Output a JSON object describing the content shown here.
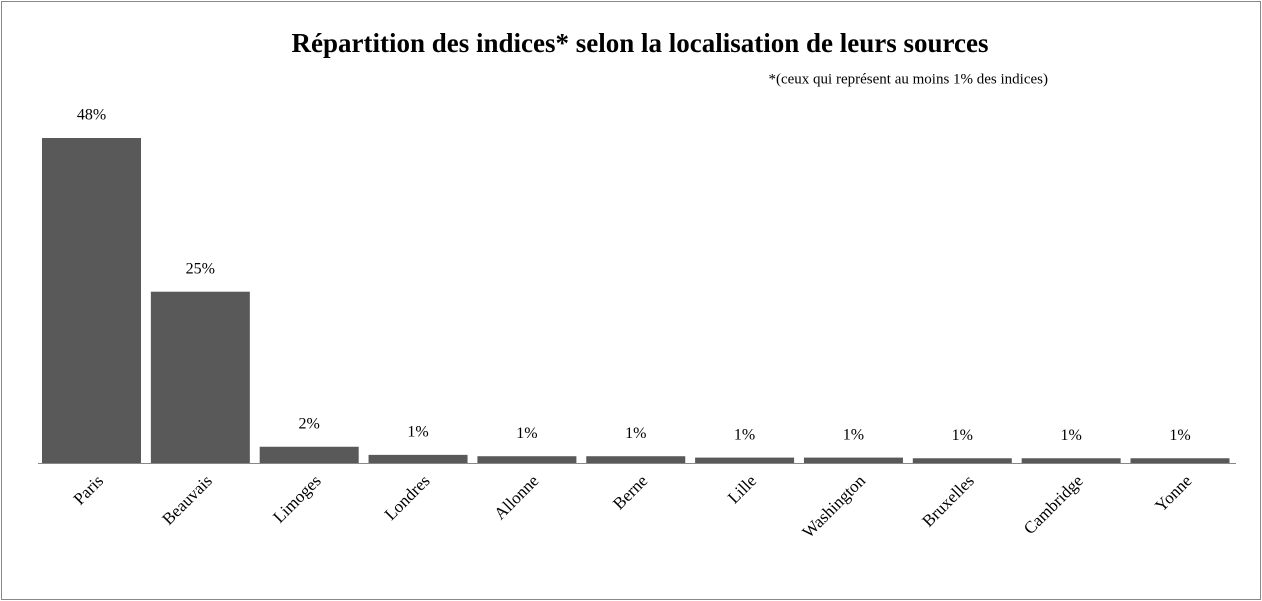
{
  "chart_data": {
    "type": "bar",
    "title": "Répartition des indices* selon la localisation de leurs sources",
    "subtitle": "*(ceux qui représent au moins 1% des indices)",
    "categories": [
      "Paris",
      "Beauvais",
      "Limoges",
      "Londres",
      "Allonne",
      "Berne",
      "Lille",
      "Washington",
      "Bruxelles",
      "Cambridge",
      "Yonne"
    ],
    "values": [
      48,
      25.3,
      2.4,
      1.2,
      1.0,
      1.0,
      0.8,
      0.8,
      0.7,
      0.7,
      0.7
    ],
    "value_labels": [
      "48%",
      "25%",
      "2%",
      "1%",
      "1%",
      "1%",
      "1%",
      "1%",
      "1%",
      "1%",
      "1%"
    ],
    "color": "#595959"
  }
}
